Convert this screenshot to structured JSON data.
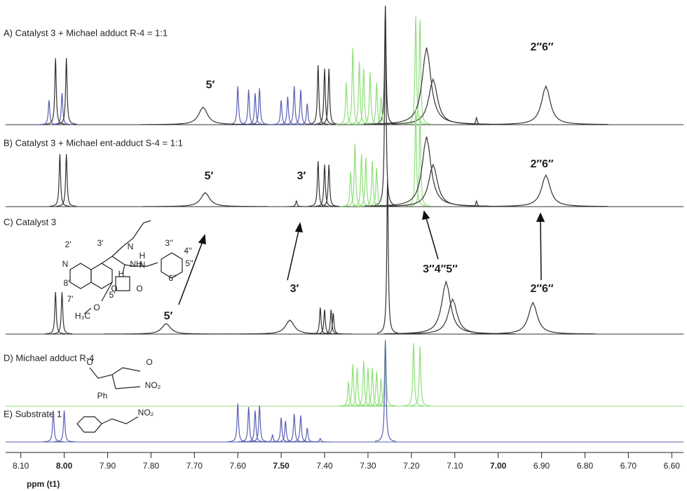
{
  "chart_data": {
    "type": "nmr",
    "x_label": "ppm (t1)",
    "xlim": [
      8.135,
      6.573
    ],
    "xticks": [
      {
        "value": 8.1,
        "label": "8.10"
      },
      {
        "value": 8.0,
        "label": "8.00"
      },
      {
        "value": 7.9,
        "label": "7.90"
      },
      {
        "value": 7.8,
        "label": "7.80"
      },
      {
        "value": 7.7,
        "label": "7.70"
      },
      {
        "value": 7.6,
        "label": "7.60"
      },
      {
        "value": 7.5,
        "label": "7.50"
      },
      {
        "value": 7.4,
        "label": "7.40"
      },
      {
        "value": 7.3,
        "label": "7.30"
      },
      {
        "value": 7.2,
        "label": "7.20"
      },
      {
        "value": 7.1,
        "label": "7.10"
      },
      {
        "value": 7.0,
        "label": "7.00"
      },
      {
        "value": 6.9,
        "label": "6.90"
      },
      {
        "value": 6.8,
        "label": "6.80"
      },
      {
        "value": 6.7,
        "label": "6.70"
      },
      {
        "value": 6.6,
        "label": "6.60"
      }
    ],
    "spectra": [
      {
        "label": "A) Catalyst 3 + Michael adduct R-4 = 1:1",
        "color": "#333333",
        "annotations": [
          "5′",
          "2″6″"
        ],
        "series": [
          {
            "color": "#5b5fb5",
            "width": 0.002,
            "x": [
              8.035,
              8.005,
              7.6,
              7.575,
              7.56,
              7.55,
              7.5,
              7.485,
              7.47,
              7.455,
              7.44
            ],
            "values": [
              35,
              45,
              55,
              50,
              45,
              52,
              35,
              40,
              55,
              50,
              30
            ]
          },
          {
            "color": "#333333",
            "width": 0.002,
            "x": [
              8.02,
              7.995,
              7.415,
              7.4,
              7.39,
              7.26,
              7.05
            ],
            "values": [
              95,
              95,
              85,
              80,
              80,
              170,
              10
            ]
          },
          {
            "color": "#8fe07a",
            "width": 0.002,
            "x": [
              7.35,
              7.335,
              7.32,
              7.31,
              7.295,
              7.28,
              7.27,
              7.19,
              7.18
            ],
            "values": [
              60,
              110,
              90,
              80,
              75,
              60,
              40,
              155,
              150
            ]
          },
          {
            "color": "#333333",
            "width": 0.012,
            "x": [
              7.68,
              7.165,
              7.15,
              6.89
            ],
            "values": [
              25,
              110,
              65,
              55
            ]
          }
        ]
      },
      {
        "label": "B) Catalyst 3 +  Michael ent-adduct S-4 = 1:1",
        "color": "#333333",
        "annotations": [
          "5′",
          "3′",
          "2″6″"
        ],
        "series": [
          {
            "color": "#333333",
            "width": 0.002,
            "x": [
              8.01,
              7.995,
              7.465,
              7.415,
              7.4,
              7.39,
              7.26,
              7.05
            ],
            "values": [
              75,
              75,
              8,
              65,
              60,
              60,
              285,
              8
            ]
          },
          {
            "color": "#8fe07a",
            "width": 0.002,
            "x": [
              7.34,
              7.33,
              7.315,
              7.305,
              7.29,
              7.28,
              7.19,
              7.18
            ],
            "values": [
              50,
              90,
              75,
              70,
              65,
              55,
              140,
              130
            ]
          },
          {
            "color": "#333333",
            "width": 0.012,
            "x": [
              7.675,
              7.165,
              7.15,
              6.89
            ],
            "values": [
              20,
              100,
              60,
              45
            ]
          }
        ]
      },
      {
        "label": "C) Catalyst 3",
        "color": "#333333",
        "annotations": [
          "5′",
          "3′",
          "3″4″5″",
          "2″6″"
        ],
        "series": [
          {
            "color": "#333333",
            "width": 0.002,
            "x": [
              8.02,
              8.005,
              7.41,
              7.4,
              7.385,
              7.38,
              7.255
            ],
            "values": [
              60,
              60,
              38,
              35,
              35,
              30,
              220
            ]
          },
          {
            "color": "#333333",
            "width": 0.012,
            "x": [
              7.765,
              7.48,
              7.12,
              7.105,
              6.92
            ],
            "values": [
              15,
              20,
              75,
              50,
              45
            ]
          }
        ]
      },
      {
        "label": "D) Michael adduct R-4",
        "color": "#8fe07a",
        "annotations": [],
        "series": [
          {
            "color": "#8fe07a",
            "width": 0.002,
            "x": [
              7.345,
              7.335,
              7.325,
              7.31,
              7.3,
              7.29,
              7.28,
              7.27,
              7.26,
              7.195,
              7.18
            ],
            "values": [
              35,
              60,
              55,
              65,
              55,
              55,
              50,
              40,
              95,
              90,
              85
            ]
          }
        ]
      },
      {
        "label": "E) Substrate 1",
        "color": "#5b5fb5",
        "annotations": [],
        "series": [
          {
            "color": "#5b5fb5",
            "width": 0.002,
            "x": [
              8.025,
              8.0,
              7.6,
              7.575,
              7.56,
              7.55,
              7.52,
              7.5,
              7.49,
              7.47,
              7.455,
              7.44,
              7.41,
              7.26
            ],
            "values": [
              45,
              45,
              55,
              50,
              45,
              52,
              10,
              35,
              30,
              40,
              38,
              20,
              5,
              145
            ]
          }
        ]
      }
    ]
  },
  "structures": {
    "catalyst": [
      "N",
      "2'",
      "3'",
      "8'",
      "7'",
      "5'",
      "O",
      "H₃C",
      "N",
      "H",
      "NH",
      "H",
      "N",
      "O",
      "O",
      "3''",
      "4''",
      "5''",
      "6''"
    ],
    "adduct": [
      "O",
      "O",
      "Ph",
      "NO₂"
    ],
    "substrate": [
      "NO₂"
    ]
  }
}
